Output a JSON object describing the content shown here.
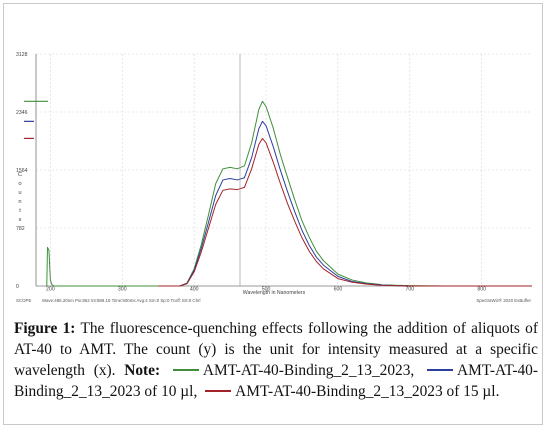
{
  "chart_data": {
    "type": "line",
    "xlabel": "Wavelength in Nanometers",
    "ylabel": "Counts",
    "xlim": [
      180,
      870
    ],
    "ylim": [
      0,
      3128
    ],
    "yticks": [
      {
        "value": 3128,
        "label": "3128"
      },
      {
        "value": 2346,
        "label": "2346"
      },
      {
        "value": 1564,
        "label": "1564"
      },
      {
        "value": 782,
        "label": "782"
      },
      {
        "value": 0,
        "label": "0"
      }
    ],
    "xticks": [
      {
        "value": 200,
        "label": "200"
      },
      {
        "value": 300,
        "label": "300"
      },
      {
        "value": 400,
        "label": "400"
      },
      {
        "value": 500,
        "label": "500"
      },
      {
        "value": 600,
        "label": "600"
      },
      {
        "value": 700,
        "label": "700"
      },
      {
        "value": 800,
        "label": "800"
      }
    ],
    "grid": true,
    "status_bar": {
      "left": "SCOPE",
      "middle": "Wave:485.20nm Pix:862 Int:888.18 Time:500ms Avg:4 Sm:0 Sp:0 Tcoff: Ett:0 Chrl",
      "right": "SpectraWiz® 2020 ExBuffer"
    },
    "series": [
      {
        "color": "#3f8f3a",
        "x": [
          195,
          196,
          198,
          200,
          202,
          205,
          210,
          250,
          300,
          350,
          380,
          390,
          400,
          410,
          420,
          430,
          440,
          450,
          460,
          470,
          480,
          490,
          495,
          500,
          510,
          520,
          530,
          540,
          550,
          560,
          570,
          580,
          600,
          620,
          640,
          660,
          680,
          700,
          750,
          800,
          870
        ],
        "y": [
          0,
          520,
          480,
          80,
          20,
          0,
          0,
          0,
          0,
          0,
          0,
          40,
          230,
          560,
          960,
          1380,
          1580,
          1600,
          1580,
          1620,
          1930,
          2380,
          2490,
          2420,
          2130,
          1770,
          1460,
          1160,
          880,
          660,
          470,
          340,
          160,
          80,
          40,
          20,
          10,
          5,
          0,
          0,
          0
        ]
      },
      {
        "color": "#2b3f9e",
        "x": [
          350,
          380,
          390,
          400,
          410,
          420,
          430,
          440,
          450,
          460,
          470,
          480,
          490,
          495,
          500,
          510,
          520,
          530,
          540,
          550,
          560,
          570,
          580,
          600,
          620,
          640,
          660,
          680,
          700,
          750,
          800,
          870
        ],
        "y": [
          0,
          0,
          35,
          210,
          510,
          860,
          1220,
          1430,
          1450,
          1430,
          1460,
          1730,
          2120,
          2220,
          2160,
          1880,
          1560,
          1270,
          1000,
          750,
          550,
          390,
          280,
          130,
          60,
          30,
          15,
          5,
          0,
          0,
          0,
          0
        ]
      },
      {
        "color": "#a3232a",
        "x": [
          350,
          380,
          390,
          400,
          410,
          420,
          430,
          440,
          450,
          460,
          470,
          480,
          490,
          495,
          500,
          510,
          520,
          530,
          540,
          550,
          560,
          570,
          580,
          600,
          620,
          640,
          660,
          680,
          700,
          750,
          800,
          870
        ],
        "y": [
          0,
          0,
          30,
          190,
          460,
          780,
          1100,
          1290,
          1310,
          1300,
          1330,
          1580,
          1910,
          1990,
          1930,
          1670,
          1380,
          1110,
          870,
          650,
          470,
          330,
          230,
          100,
          50,
          25,
          10,
          5,
          0,
          0,
          0,
          0
        ]
      }
    ]
  },
  "caption": {
    "figure_label": "Figure 1:",
    "text": " The fluorescence-quenching effects following the addition of aliquots of AT-40 to AMT. The count (y) is the unit for intensity measured at a specific wavelength (x). ",
    "note_label": "Note:",
    "legend": [
      {
        "color": "#3f8f3a",
        "text": "AMT-AT-40-Binding_2_13_2023,"
      },
      {
        "color": "#2b3f9e",
        "text": "AMT-AT-40-Binding_2_13_2023 of 10 µl,"
      },
      {
        "color": "#a3232a",
        "text": "AMT-AT-40-Binding_2_13_2023 of 15 µl."
      }
    ]
  }
}
